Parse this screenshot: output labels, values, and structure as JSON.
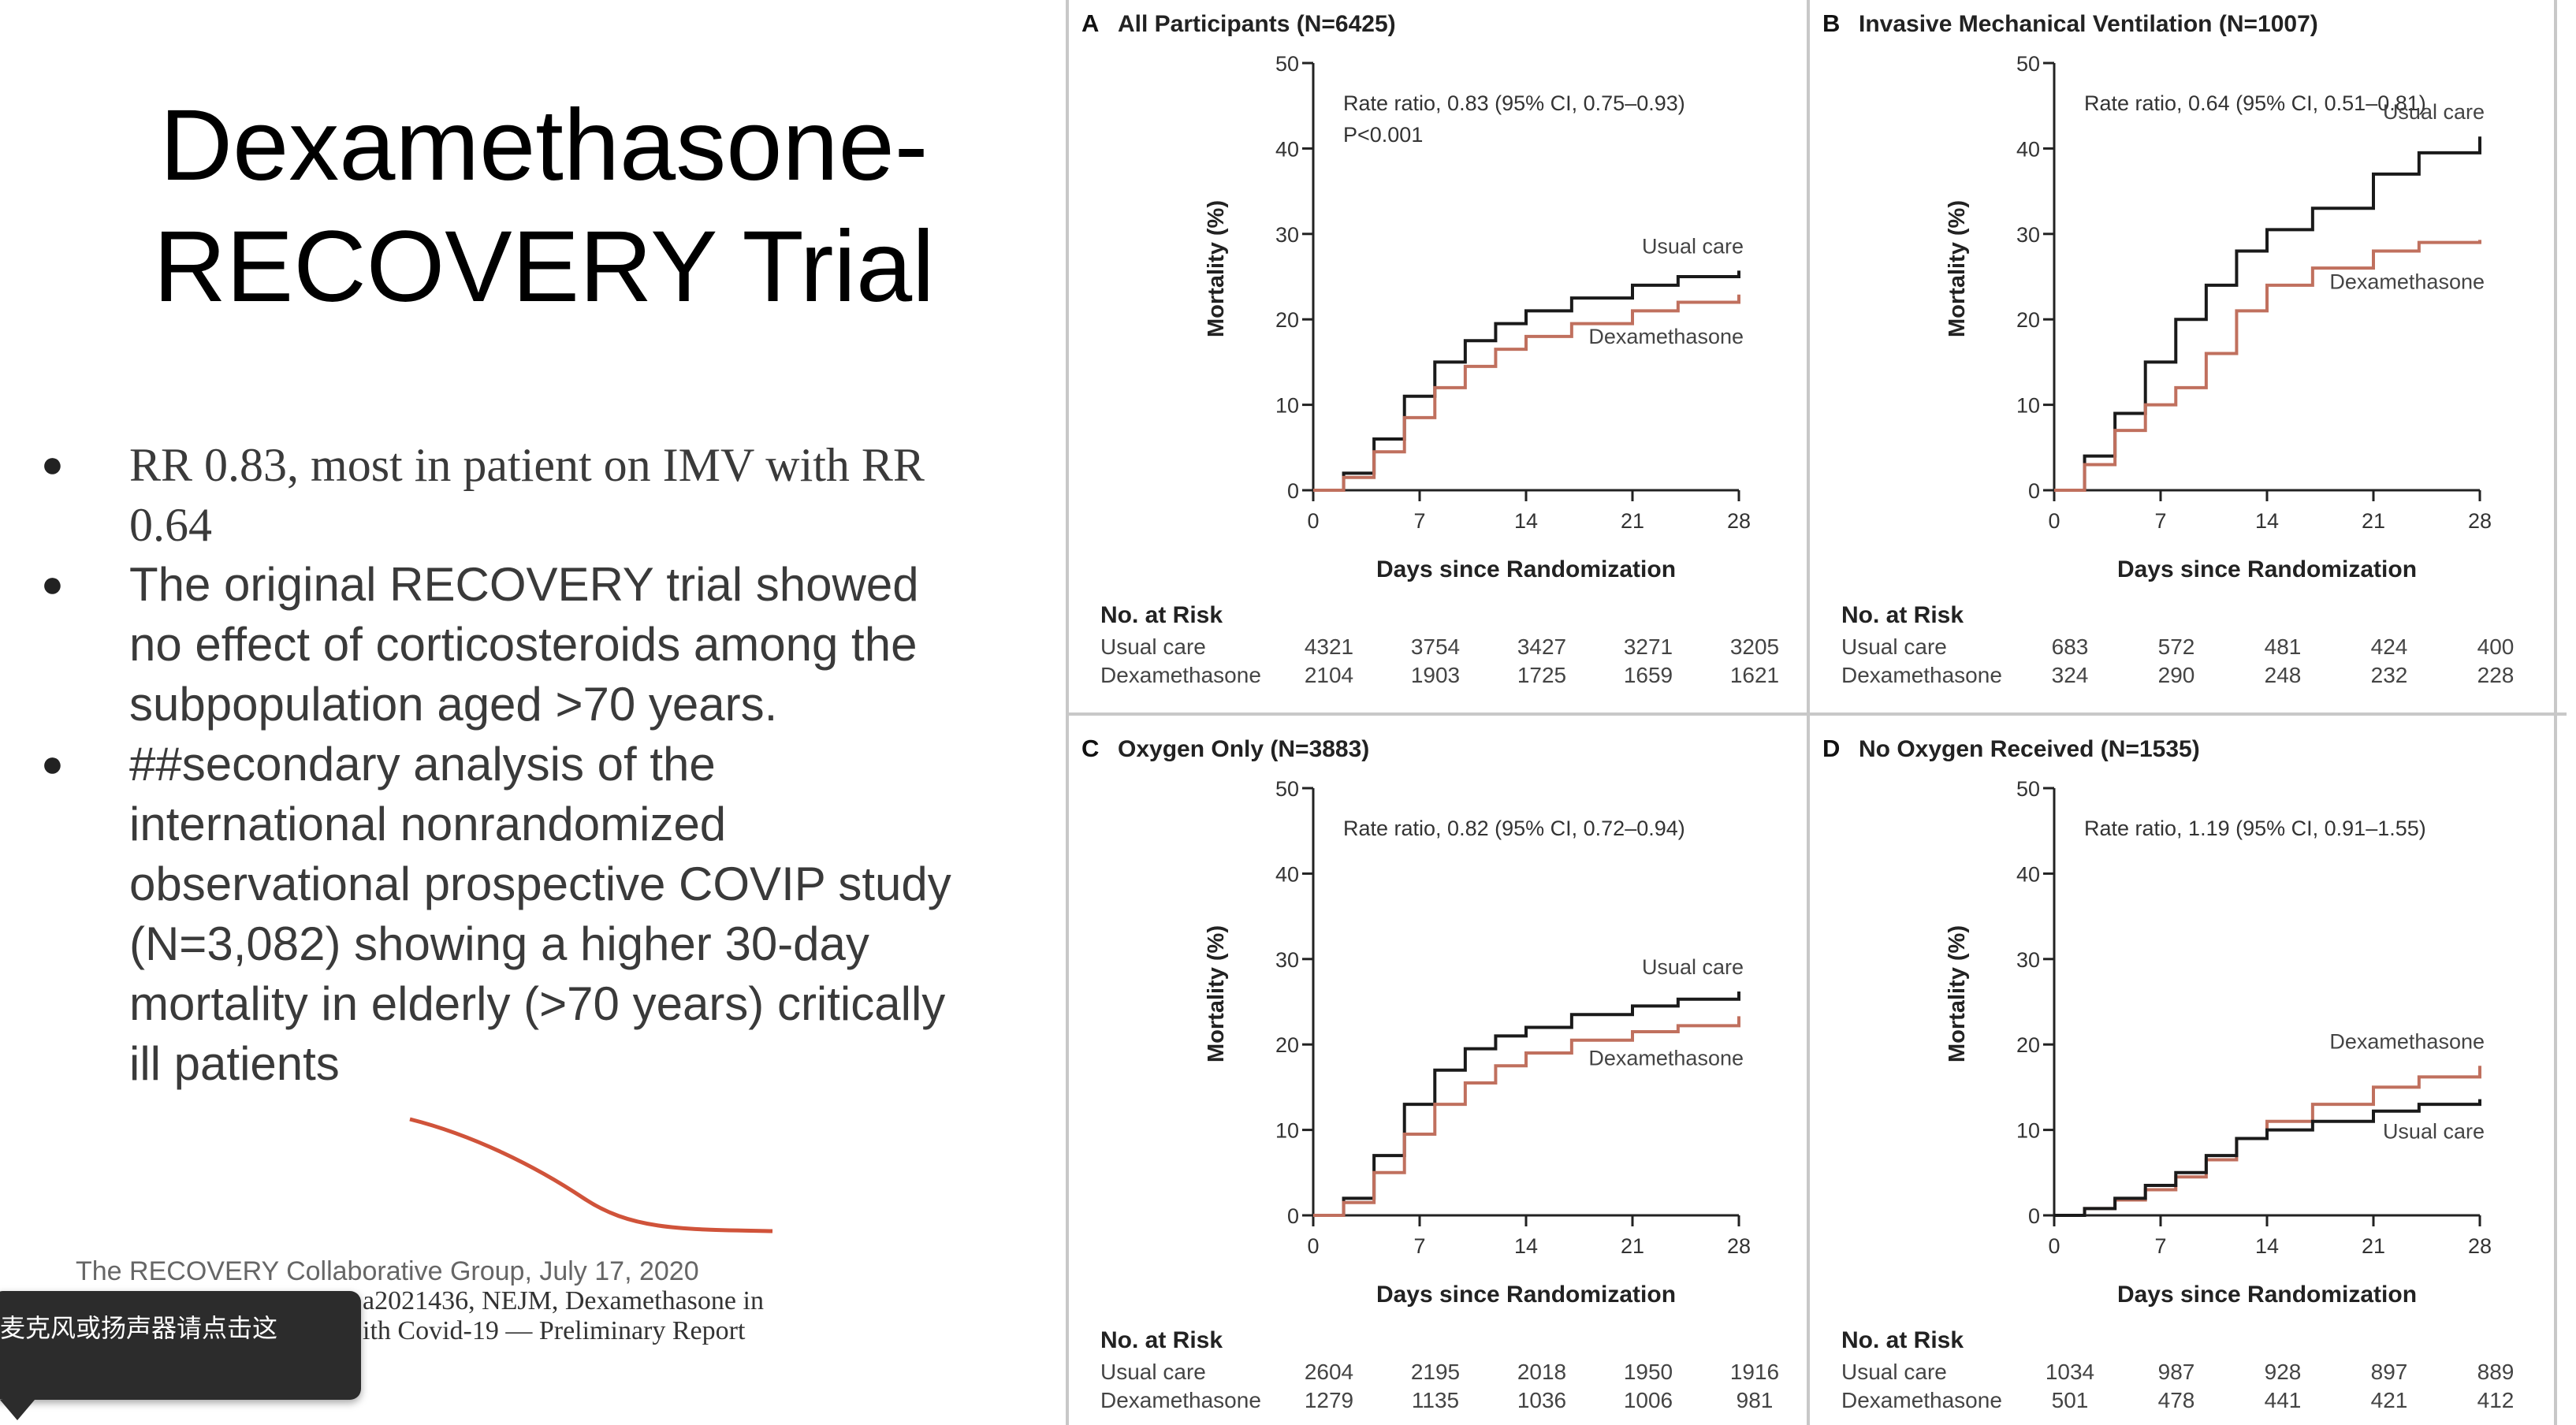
{
  "slide": {
    "title_line1": "Dexamethasone-",
    "title_line2": "RECOVERY Trial",
    "bullets": [
      "RR 0.83, most in patient on IMV with RR 0.64",
      "The original RECOVERY trial showed no effect of corticosteroids among the subpopulation aged >70 years.",
      "##secondary analysis of the international nonrandomized observational prospective COVIP study (N=3,082) showing a higher 30-day mortality in elderly (>70 years) critically ill patients"
    ],
    "reference_line1": "The RECOVERY Collaborative Group, July 17, 2020",
    "reference_line2": "a2021436, NEJM, Dexamethasone in",
    "reference_line3": "ith Covid-19 — Preliminary Report",
    "toast_text": "麦克风或扬声器请点击这"
  },
  "colors": {
    "usual": "#1a1a1a",
    "dexa": "#c0705e",
    "annotation": "#d0533a",
    "divider": "#c8c8c8"
  },
  "chart_data": [
    {
      "type": "line",
      "panel": "A",
      "title": "All Participants (N=6425)",
      "annotation": [
        "Rate ratio, 0.83 (95% CI, 0.75–0.93)",
        "P<0.001"
      ],
      "xlabel": "Days since Randomization",
      "ylabel": "Mortality (%)",
      "xlim": [
        0,
        28
      ],
      "ylim": [
        0,
        50
      ],
      "xticks": [
        0,
        7,
        14,
        21,
        28
      ],
      "yticks": [
        0,
        10,
        20,
        30,
        40,
        50
      ],
      "series": [
        {
          "name": "Usual care",
          "x": [
            0,
            2,
            4,
            6,
            8,
            10,
            12,
            14,
            17,
            21,
            24,
            28
          ],
          "y": [
            0,
            2,
            6,
            11,
            15,
            17.5,
            19.5,
            21,
            22.5,
            24,
            25,
            25.7
          ]
        },
        {
          "name": "Dexamethasone",
          "x": [
            0,
            2,
            4,
            6,
            8,
            10,
            12,
            14,
            17,
            21,
            24,
            28
          ],
          "y": [
            0,
            1.5,
            4.5,
            8.5,
            12,
            14.5,
            16.5,
            18,
            19.5,
            21,
            22,
            22.9
          ]
        }
      ],
      "risk_label": "No. at Risk",
      "risk": [
        {
          "name": "Usual care",
          "values": [
            "4321",
            "3754",
            "3427",
            "3271",
            "3205"
          ]
        },
        {
          "name": "Dexamethasone",
          "values": [
            "2104",
            "1903",
            "1725",
            "1659",
            "1621"
          ]
        }
      ]
    },
    {
      "type": "line",
      "panel": "B",
      "title": "Invasive Mechanical Ventilation (N=1007)",
      "annotation": [
        "Rate ratio, 0.64 (95% CI, 0.51–0.81)"
      ],
      "xlabel": "Days since Randomization",
      "ylabel": "Mortality (%)",
      "xlim": [
        0,
        28
      ],
      "ylim": [
        0,
        50
      ],
      "xticks": [
        0,
        7,
        14,
        21,
        28
      ],
      "yticks": [
        0,
        10,
        20,
        30,
        40,
        50
      ],
      "series": [
        {
          "name": "Usual care",
          "x": [
            0,
            2,
            4,
            6,
            8,
            10,
            12,
            14,
            17,
            21,
            24,
            28
          ],
          "y": [
            0,
            4,
            9,
            15,
            20,
            24,
            28,
            30.5,
            33,
            37,
            39.5,
            41.4
          ]
        },
        {
          "name": "Dexamethasone",
          "x": [
            0,
            2,
            4,
            6,
            8,
            10,
            12,
            14,
            17,
            21,
            24,
            28
          ],
          "y": [
            0,
            3,
            7,
            10,
            12,
            16,
            21,
            24,
            26,
            28,
            29,
            29.3
          ]
        }
      ],
      "risk_label": "No. at Risk",
      "risk": [
        {
          "name": "Usual care",
          "values": [
            "683",
            "572",
            "481",
            "424",
            "400"
          ]
        },
        {
          "name": "Dexamethasone",
          "values": [
            "324",
            "290",
            "248",
            "232",
            "228"
          ]
        }
      ]
    },
    {
      "type": "line",
      "panel": "C",
      "title": "Oxygen Only (N=3883)",
      "annotation": [
        "Rate ratio, 0.82 (95% CI, 0.72–0.94)"
      ],
      "xlabel": "Days since Randomization",
      "ylabel": "Mortality (%)",
      "xlim": [
        0,
        28
      ],
      "ylim": [
        0,
        50
      ],
      "xticks": [
        0,
        7,
        14,
        21,
        28
      ],
      "yticks": [
        0,
        10,
        20,
        30,
        40,
        50
      ],
      "series": [
        {
          "name": "Usual care",
          "x": [
            0,
            2,
            4,
            6,
            8,
            10,
            12,
            14,
            17,
            21,
            24,
            28
          ],
          "y": [
            0,
            2,
            7,
            13,
            17,
            19.5,
            21,
            22,
            23.5,
            24.5,
            25.3,
            26.2
          ]
        },
        {
          "name": "Dexamethasone",
          "x": [
            0,
            2,
            4,
            6,
            8,
            10,
            12,
            14,
            17,
            21,
            24,
            28
          ],
          "y": [
            0,
            1.5,
            5,
            9.5,
            13,
            15.5,
            17.5,
            19,
            20.5,
            21.5,
            22.2,
            23.3
          ]
        }
      ],
      "risk_label": "No. at Risk",
      "risk": [
        {
          "name": "Usual care",
          "values": [
            "2604",
            "2195",
            "2018",
            "1950",
            "1916"
          ]
        },
        {
          "name": "Dexamethasone",
          "values": [
            "1279",
            "1135",
            "1036",
            "1006",
            "981"
          ]
        }
      ]
    },
    {
      "type": "line",
      "panel": "D",
      "title": "No Oxygen Received (N=1535)",
      "annotation": [
        "Rate ratio, 1.19 (95% CI, 0.91–1.55)"
      ],
      "xlabel": "Days since Randomization",
      "ylabel": "Mortality (%)",
      "xlim": [
        0,
        28
      ],
      "ylim": [
        0,
        50
      ],
      "xticks": [
        0,
        7,
        14,
        21,
        28
      ],
      "yticks": [
        0,
        10,
        20,
        30,
        40,
        50
      ],
      "series": [
        {
          "name": "Dexamethasone",
          "x": [
            0,
            2,
            4,
            6,
            8,
            10,
            12,
            14,
            17,
            21,
            24,
            28
          ],
          "y": [
            0,
            0.8,
            1.8,
            3,
            4.5,
            6.5,
            9,
            11,
            13,
            15,
            16.2,
            17.5
          ]
        },
        {
          "name": "Usual care",
          "x": [
            0,
            2,
            4,
            6,
            8,
            10,
            12,
            14,
            17,
            21,
            24,
            28
          ],
          "y": [
            0,
            0.8,
            2,
            3.5,
            5,
            7,
            9,
            10,
            11,
            12.2,
            13,
            13.6
          ]
        }
      ],
      "risk_label": "No. at Risk",
      "risk": [
        {
          "name": "Usual care",
          "values": [
            "1034",
            "987",
            "928",
            "897",
            "889"
          ]
        },
        {
          "name": "Dexamethasone",
          "values": [
            "501",
            "478",
            "441",
            "421",
            "412"
          ]
        }
      ]
    }
  ]
}
